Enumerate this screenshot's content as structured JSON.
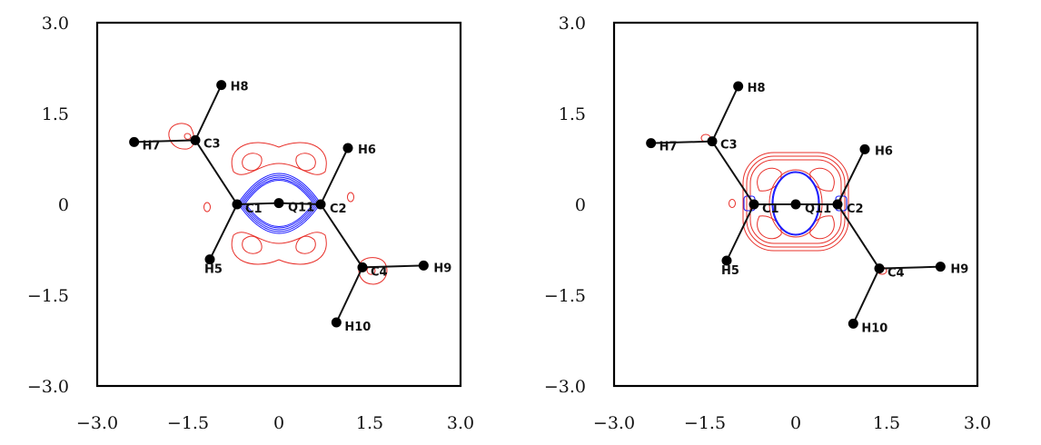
{
  "panels": [
    {
      "id": "left",
      "x_ticks": [
        "−3.0",
        "−1.5",
        "0",
        "1.5",
        "3.0"
      ],
      "y_ticks": [
        "3.0",
        "1.5",
        "0",
        "−1.5",
        "−3.0"
      ],
      "atoms": [
        {
          "label": "C1",
          "x": -0.69,
          "y": 0.0
        },
        {
          "label": "C2",
          "x": 0.69,
          "y": 0.0
        },
        {
          "label": "Q11",
          "x": 0.0,
          "y": 0.02
        },
        {
          "label": "C3",
          "x": -1.38,
          "y": 1.06
        },
        {
          "label": "C4",
          "x": 1.38,
          "y": -1.04
        },
        {
          "label": "H5",
          "x": -1.14,
          "y": -0.91
        },
        {
          "label": "H6",
          "x": 1.14,
          "y": 0.93
        },
        {
          "label": "H7",
          "x": -2.39,
          "y": 1.03
        },
        {
          "label": "H8",
          "x": -0.95,
          "y": 1.97
        },
        {
          "label": "H9",
          "x": 2.39,
          "y": -1.01
        },
        {
          "label": "H10",
          "x": 0.95,
          "y": -1.95
        }
      ],
      "bonds": [
        [
          "C1",
          "Q11"
        ],
        [
          "Q11",
          "C2"
        ],
        [
          "C1",
          "C3"
        ],
        [
          "C1",
          "H5"
        ],
        [
          "C3",
          "H7"
        ],
        [
          "C3",
          "H8"
        ],
        [
          "C2",
          "H6"
        ],
        [
          "C2",
          "C4"
        ],
        [
          "C4",
          "H9"
        ],
        [
          "C4",
          "H10"
        ]
      ],
      "contours": {
        "blue": "#1a1aff",
        "red": "#e8302a"
      }
    },
    {
      "id": "right",
      "x_ticks": [
        "−3.0",
        "−1.5",
        "0",
        "1.5",
        "3.0"
      ],
      "y_ticks": [
        "3.0",
        "1.5",
        "0",
        "−1.5",
        "−3.0"
      ],
      "atoms": [
        {
          "label": "C1",
          "x": -0.69,
          "y": 0.0
        },
        {
          "label": "C2",
          "x": 0.69,
          "y": 0.0
        },
        {
          "label": "Q11",
          "x": 0.0,
          "y": 0.0
        },
        {
          "label": "C3",
          "x": -1.38,
          "y": 1.04
        },
        {
          "label": "C4",
          "x": 1.38,
          "y": -1.06
        },
        {
          "label": "H5",
          "x": -1.14,
          "y": -0.93
        },
        {
          "label": "H6",
          "x": 1.14,
          "y": 0.91
        },
        {
          "label": "H7",
          "x": -2.39,
          "y": 1.01
        },
        {
          "label": "H8",
          "x": -0.95,
          "y": 1.95
        },
        {
          "label": "H9",
          "x": 2.39,
          "y": -1.03
        },
        {
          "label": "H10",
          "x": 0.95,
          "y": -1.97
        }
      ],
      "bonds": [
        [
          "C1",
          "Q11"
        ],
        [
          "Q11",
          "C2"
        ],
        [
          "C1",
          "C3"
        ],
        [
          "C1",
          "H5"
        ],
        [
          "C3",
          "H7"
        ],
        [
          "C3",
          "H8"
        ],
        [
          "C2",
          "H6"
        ],
        [
          "C2",
          "C4"
        ],
        [
          "C4",
          "H9"
        ],
        [
          "C4",
          "H10"
        ]
      ],
      "contours": {
        "blue": "#1a1aff",
        "red": "#e8302a"
      }
    }
  ]
}
